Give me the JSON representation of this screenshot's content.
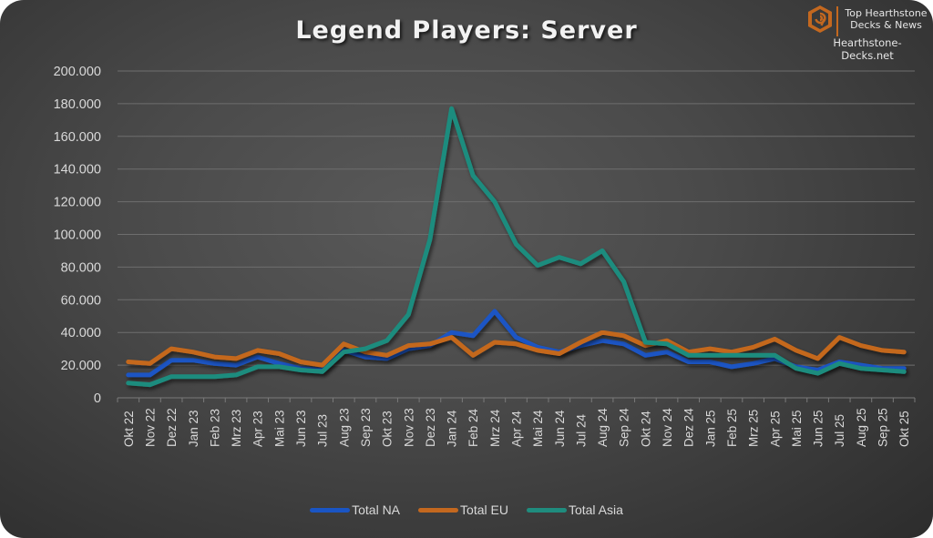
{
  "header": {
    "title": "Legend Players: Server",
    "brand_line1": "Top Hearthstone",
    "brand_line2": "Decks & News",
    "brand_url": "Hearthstone-Decks.net",
    "brand_icon": "hearthstone-logo-icon"
  },
  "colors": {
    "na": "#1a55c4",
    "eu": "#c4681f",
    "asia": "#1f8c7e",
    "grid": "#6e6e6e",
    "text": "#d9d9d9",
    "brand": "#c4681f"
  },
  "chart_data": {
    "type": "line",
    "title": "Legend Players: Server",
    "xlabel": "",
    "ylabel": "",
    "ylim": [
      0,
      200000
    ],
    "yticks": [
      0,
      20000,
      40000,
      60000,
      80000,
      100000,
      120000,
      140000,
      160000,
      180000,
      200000
    ],
    "ytick_labels": [
      "0",
      "20.000",
      "40.000",
      "60.000",
      "80.000",
      "100.000",
      "120.000",
      "140.000",
      "160.000",
      "180.000",
      "200.000"
    ],
    "grid": true,
    "legend_position": "bottom",
    "categories": [
      "Okt 22",
      "Nov 22",
      "Dez 22",
      "Jan 23",
      "Feb 23",
      "Mrz 23",
      "Apr 23",
      "Mai 23",
      "Jun 23",
      "Jul 23",
      "Aug 23",
      "Sep 23",
      "Okt 23",
      "Nov 23",
      "Dez 23",
      "Jan 24",
      "Feb 24",
      "Mrz 24",
      "Apr 24",
      "Mai 24",
      "Jun 24",
      "Jul 24",
      "Aug 24",
      "Sep 24",
      "Okt 24",
      "Nov 24",
      "Dez 24",
      "Jan 25",
      "Feb 25",
      "Mrz 25",
      "Apr 25",
      "Mai 25",
      "Jun 25",
      "Jul 25",
      "Aug 25",
      "Sep 25",
      "Okt 25"
    ],
    "series": [
      {
        "name": "Total NA",
        "color": "#1a55c4",
        "values": [
          14000,
          14000,
          23000,
          23000,
          21000,
          20000,
          25000,
          21000,
          18000,
          17000,
          29000,
          25000,
          24000,
          30000,
          32000,
          40000,
          38000,
          53000,
          37000,
          31000,
          28000,
          32000,
          35000,
          33000,
          26000,
          28000,
          22000,
          22000,
          19000,
          21000,
          24000,
          19000,
          17000,
          22000,
          20000,
          18000,
          18000
        ]
      },
      {
        "name": "Total EU",
        "color": "#c4681f",
        "values": [
          22000,
          21000,
          30000,
          28000,
          25000,
          24000,
          29000,
          27000,
          22000,
          20000,
          33000,
          28000,
          26000,
          32000,
          33000,
          37000,
          26000,
          34000,
          33000,
          29000,
          27000,
          34000,
          40000,
          38000,
          32000,
          35000,
          28000,
          30000,
          28000,
          31000,
          36000,
          29000,
          24000,
          37000,
          32000,
          29000,
          28000
        ]
      },
      {
        "name": "Total Asia",
        "color": "#1f8c7e",
        "values": [
          9000,
          8000,
          13000,
          13000,
          13000,
          14000,
          19000,
          19000,
          17000,
          16000,
          28000,
          30000,
          35000,
          51000,
          97000,
          177000,
          136000,
          120000,
          94000,
          81000,
          86000,
          82000,
          90000,
          71000,
          34000,
          33000,
          26000,
          26000,
          26000,
          26000,
          26000,
          18000,
          15000,
          21000,
          18000,
          17000,
          16000
        ]
      }
    ]
  },
  "legend": {
    "items": [
      {
        "label": "Total NA"
      },
      {
        "label": "Total EU"
      },
      {
        "label": "Total Asia"
      }
    ]
  }
}
